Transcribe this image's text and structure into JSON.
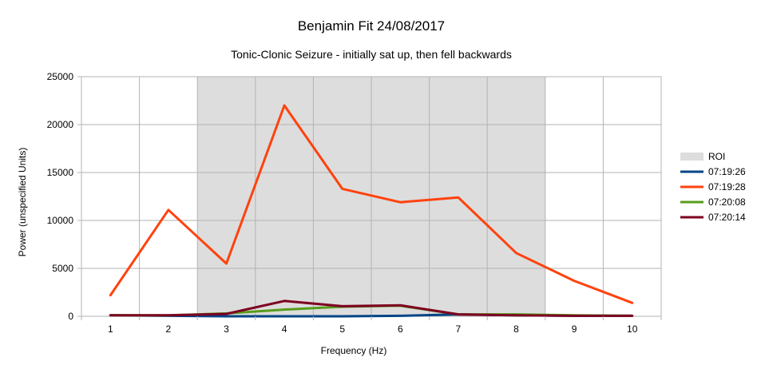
{
  "chart_data": {
    "type": "line",
    "title": "Benjamin Fit 24/08/2017",
    "subtitle": "Tonic-Clonic Seizure - initially sat up, then fell backwards",
    "xlabel": "Frequency (Hz)",
    "ylabel": "Power (unspecified Units)",
    "x": [
      1,
      2,
      3,
      4,
      5,
      6,
      7,
      8,
      9,
      10
    ],
    "xlim": [
      0.5,
      10.5
    ],
    "ylim": [
      0,
      25000
    ],
    "yticks": [
      0,
      5000,
      10000,
      15000,
      20000,
      25000
    ],
    "grid": true,
    "legend_position": "right",
    "roi": {
      "name": "ROI",
      "x_from": 2.5,
      "x_to": 8.5,
      "color": "#dddddd"
    },
    "series": [
      {
        "name": "07:19:26",
        "color": "#004586",
        "values": [
          100,
          50,
          0,
          0,
          0,
          50,
          200,
          100,
          50,
          50
        ]
      },
      {
        "name": "07:19:28",
        "color": "#ff420e",
        "values": [
          2200,
          11100,
          5500,
          22000,
          13300,
          11900,
          12400,
          6600,
          3700,
          1400
        ]
      },
      {
        "name": "07:20:08",
        "color": "#579d1c",
        "values": [
          100,
          100,
          300,
          700,
          1000,
          1100,
          200,
          200,
          100,
          50
        ]
      },
      {
        "name": "07:20:14",
        "color": "#7e0021",
        "values": [
          100,
          100,
          250,
          1600,
          1050,
          1150,
          200,
          100,
          50,
          50
        ]
      }
    ]
  }
}
